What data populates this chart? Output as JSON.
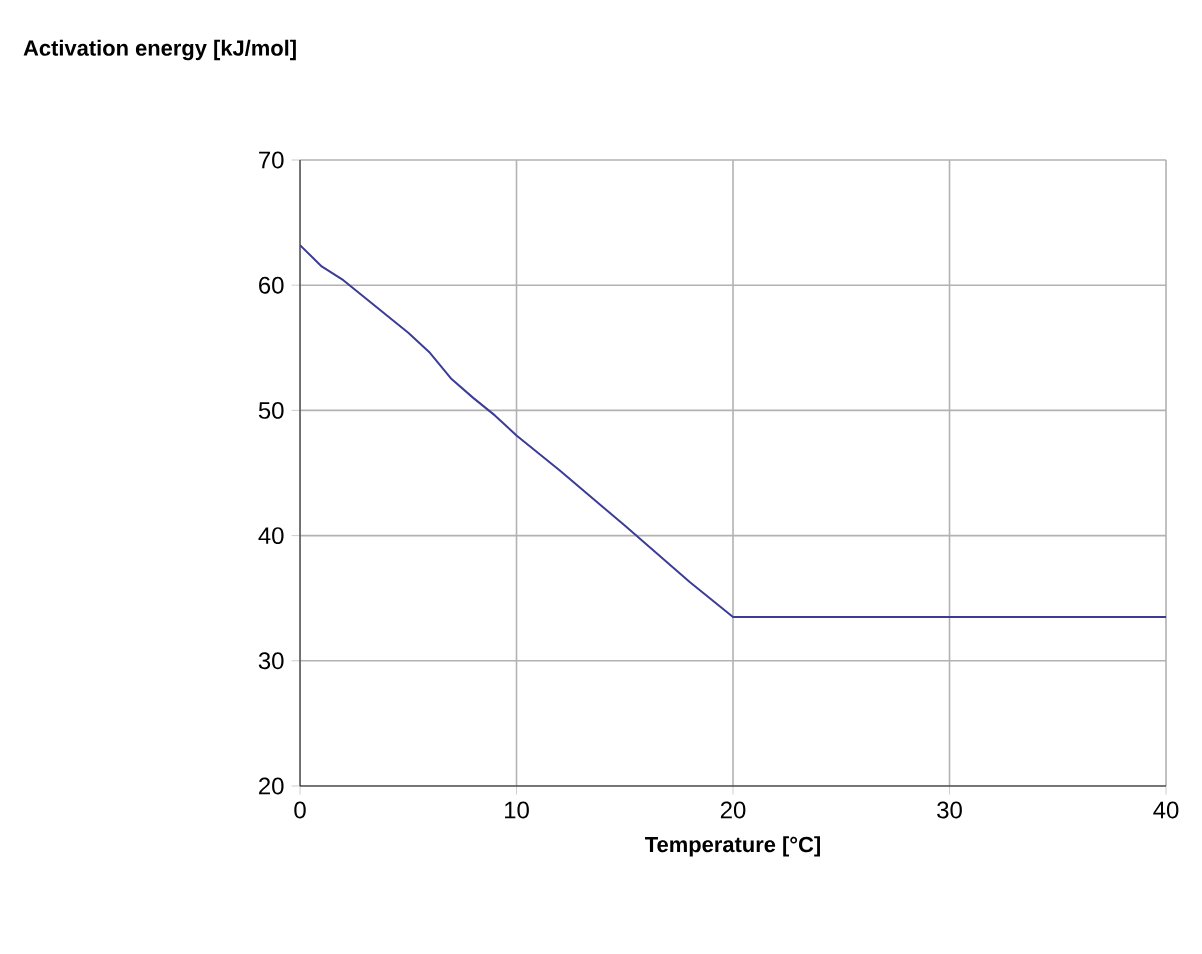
{
  "chart_data": {
    "type": "line",
    "title": "Activation energy [kJ/mol]",
    "xlabel": "Temperature [°C]",
    "x": [
      0,
      1,
      2,
      3,
      4,
      5,
      6,
      7,
      8,
      9,
      10,
      12,
      15,
      18,
      20,
      25,
      30,
      35,
      40
    ],
    "values": [
      63.2,
      61.5,
      60.4,
      59,
      57.6,
      56.2,
      54.6,
      52.5,
      51,
      49.6,
      48,
      45.2,
      40.8,
      36.3,
      33.5,
      33.5,
      33.5,
      33.5,
      33.5
    ],
    "color": "#3c3c96",
    "xlim": [
      0,
      40
    ],
    "ylim": [
      20,
      70
    ],
    "xticks": [
      0,
      10,
      20,
      30,
      40
    ],
    "yticks": [
      20,
      30,
      40,
      50,
      60,
      70
    ],
    "grid": true,
    "marker": "none",
    "line_style": "solid"
  }
}
